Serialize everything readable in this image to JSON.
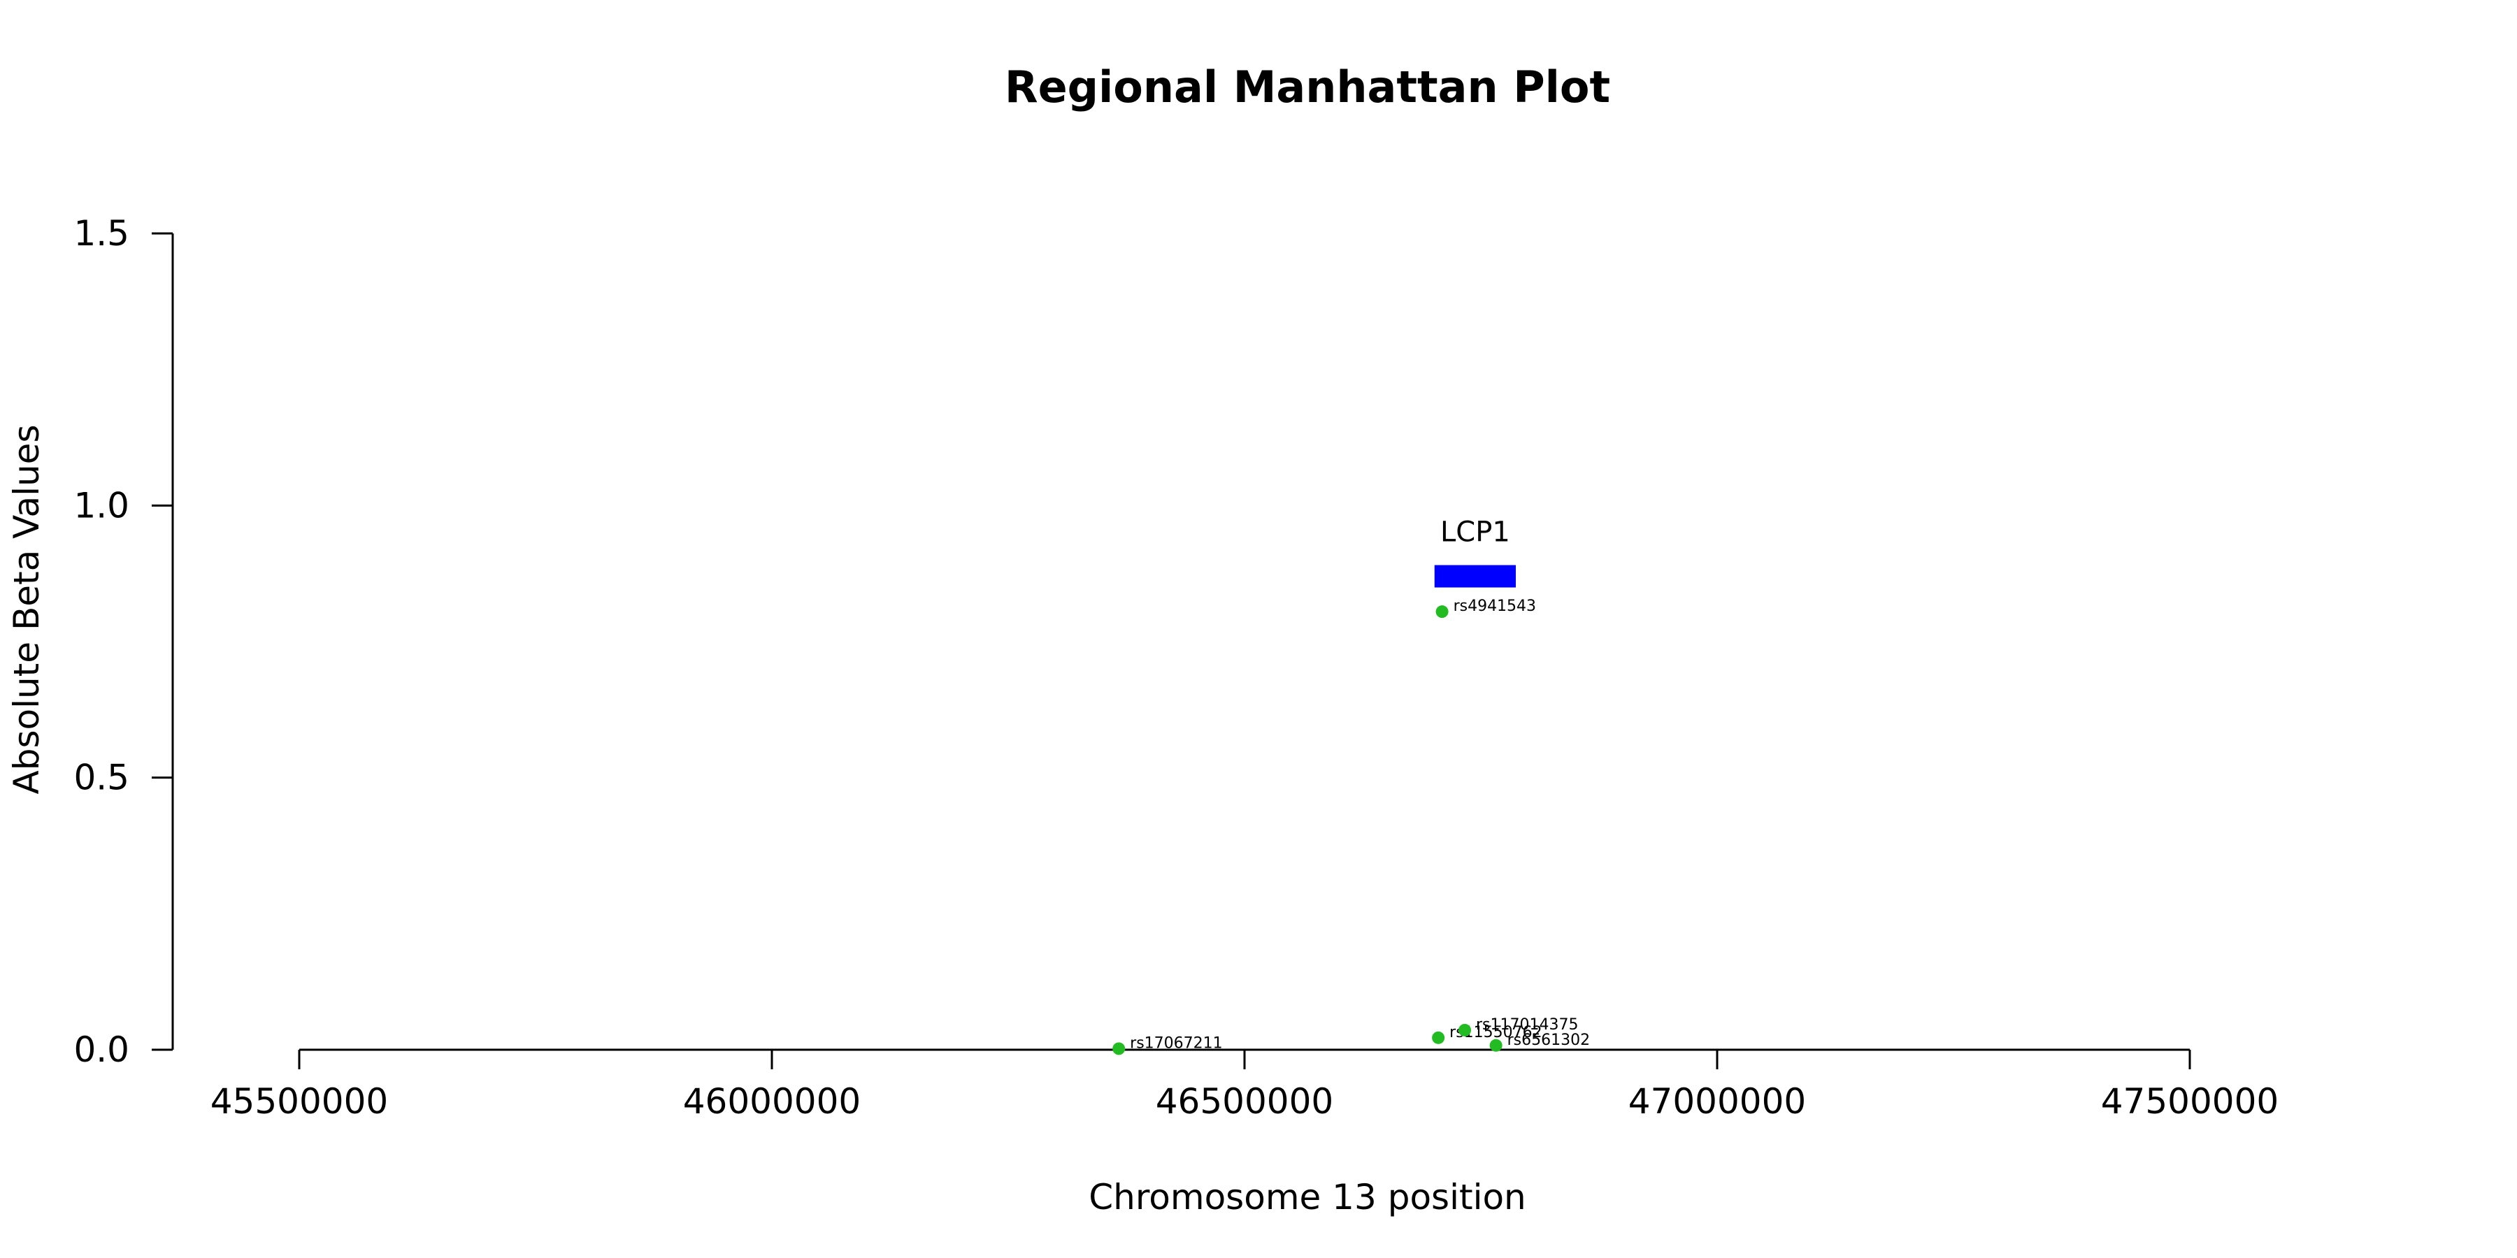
{
  "chart_data": {
    "type": "scatter",
    "title": "Regional Manhattan Plot",
    "xlabel": "Chromosome 13 position",
    "ylabel": "Absolute Beta Values",
    "xlim": [
      45500000,
      47500000
    ],
    "ylim": [
      0,
      1.5
    ],
    "x_ticks": [
      45500000,
      46000000,
      46500000,
      47000000,
      47500000
    ],
    "y_ticks": [
      0.0,
      0.5,
      1.0,
      1.5
    ],
    "x_tick_labels": [
      "45500000",
      "46000000",
      "46500000",
      "47000000",
      "47500000"
    ],
    "y_tick_labels": [
      "0.0",
      "0.5",
      "1.0",
      "1.5"
    ],
    "point_color": "#22bb22",
    "points": [
      {
        "label": "rs4941543",
        "x": 46709000,
        "y": 0.805
      },
      {
        "label": "rs17067211",
        "x": 46367000,
        "y": 0.002
      },
      {
        "label": "rs1155xxxx",
        "label_display": "rs11550762",
        "x": 46705000,
        "y": 0.022
      },
      {
        "label": "rs117014375",
        "x": 46733000,
        "y": 0.036
      },
      {
        "label": "rs6561302",
        "x": 46766000,
        "y": 0.008
      }
    ],
    "genes": [
      {
        "name": "LCP1",
        "start": 46701000,
        "end": 46787000,
        "y": 0.87,
        "color": "#0000ff"
      }
    ],
    "grid": false,
    "legend": "none"
  }
}
